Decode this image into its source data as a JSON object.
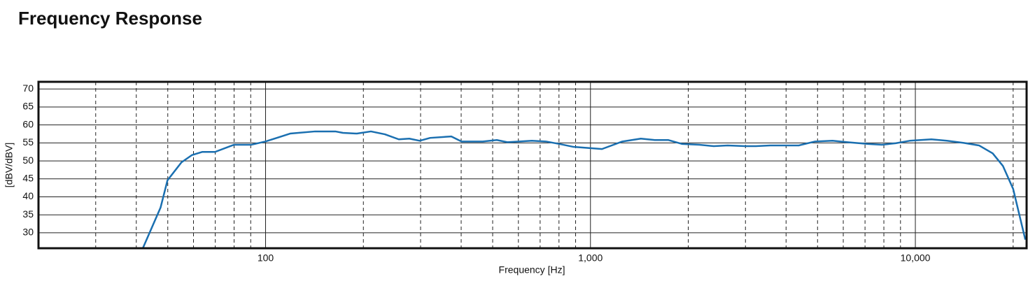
{
  "chart_data": {
    "type": "line",
    "title": "Frequency Response",
    "xlabel": "Frequency [Hz]",
    "ylabel": "[dBV/dBV]",
    "xscale": "log",
    "xlim": [
      20,
      22000
    ],
    "ylim": [
      25.7,
      72
    ],
    "xticks": [
      100,
      {
        "value": 1000,
        "label": "1,000"
      },
      {
        "value": 10000,
        "label": "10,000"
      }
    ],
    "xminorticks": [
      30,
      40,
      50,
      60,
      70,
      80,
      90,
      200,
      300,
      400,
      500,
      600,
      700,
      800,
      900,
      2000,
      3000,
      4000,
      5000,
      6000,
      7000,
      8000,
      9000,
      20000
    ],
    "yticks": [
      30,
      35,
      40,
      45,
      50,
      55,
      60,
      65,
      70
    ],
    "grid": true,
    "series": [
      {
        "name": "Frequency Response",
        "color": "#1a6fb0",
        "x": [
          41.9,
          47.5,
          49.9,
          55.1,
          59.3,
          63.9,
          69.9,
          80,
          90.5,
          100,
          110,
          119,
          142,
          164,
          173,
          191,
          211,
          233,
          257,
          277,
          298,
          321,
          373,
          401,
          466,
          515,
          555,
          661,
          729,
          804,
          887,
          1085,
          1254,
          1429,
          1578,
          1738,
          1917,
          2164,
          2396,
          2644,
          2998,
          3228,
          3575,
          4376,
          4917,
          5560,
          6180,
          7160,
          7890,
          8690,
          9610,
          11200,
          12500,
          14100,
          15700,
          17300,
          18600,
          20000,
          21800
        ],
        "values": [
          25.7,
          37,
          44.6,
          49.6,
          51.6,
          52.5,
          52.5,
          54.5,
          54.5,
          55.4,
          56.6,
          57.6,
          58.2,
          58.2,
          57.8,
          57.6,
          58.2,
          57.4,
          56.0,
          56.2,
          55.6,
          56.4,
          56.8,
          55.4,
          55.4,
          55.8,
          55.2,
          55.6,
          55.4,
          54.7,
          53.9,
          53.3,
          55.4,
          56.2,
          55.8,
          55.8,
          54.7,
          54.5,
          54.1,
          54.3,
          54.1,
          54.1,
          54.3,
          54.3,
          55.4,
          55.6,
          55.2,
          54.7,
          54.5,
          54.9,
          55.6,
          56.0,
          55.6,
          55.0,
          54.3,
          52.1,
          48.6,
          42.2,
          28.1
        ]
      }
    ]
  }
}
